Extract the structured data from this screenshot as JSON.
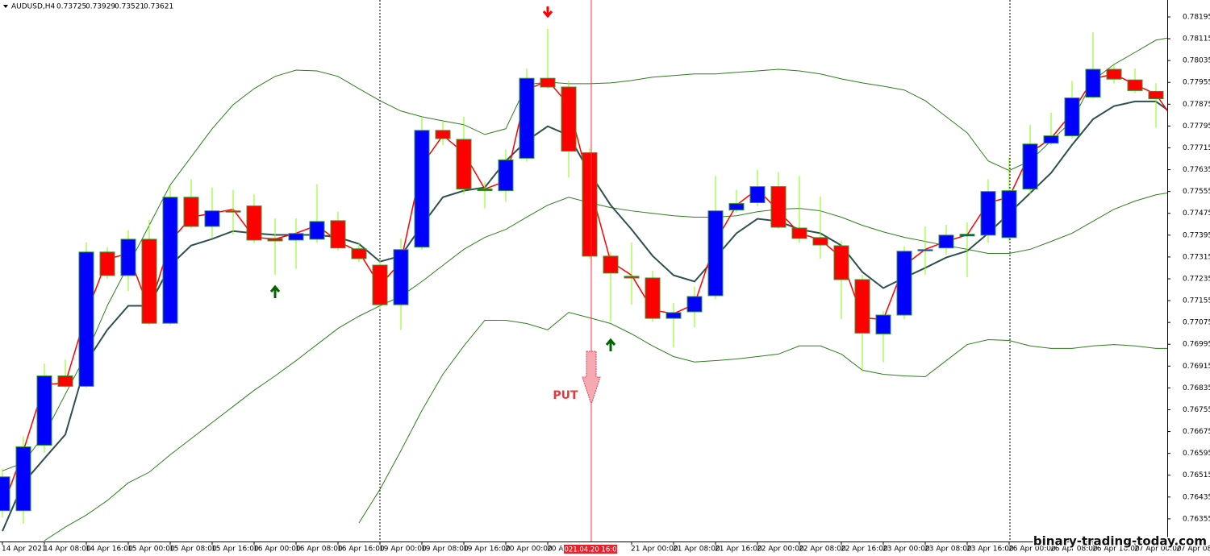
{
  "chart_data": {
    "type": "candlestick",
    "symbol": "AUDUSD,H4",
    "header_values": [
      0.73725,
      0.73929,
      0.73521,
      0.73621
    ],
    "categories": [
      "14 Apr 2021",
      null,
      "14 Apr 08:00",
      null,
      "14 Apr 16:00",
      null,
      "15 Apr 00:00",
      null,
      "15 Apr 08:00",
      null,
      "15 Apr 16:00",
      null,
      "16 Apr 00:00",
      null,
      "16 Apr 08:00",
      null,
      "16 Apr 16:00",
      null,
      "19 Apr 00:00",
      null,
      "19 Apr 08:00",
      null,
      "19 Apr 16:00",
      null,
      "20 Apr 00:00",
      null,
      "20 Apr 08:00",
      null,
      null,
      null,
      "21 Apr 00:00",
      null,
      "21 Apr 08:00",
      null,
      "21 Apr 16:00",
      null,
      "22 Apr 00:00",
      null,
      "22 Apr 08:00",
      null,
      "22 Apr 16:00",
      null,
      "23 Apr 00:00",
      null,
      "23 Apr 08:00",
      null,
      "23 Apr 16:00",
      null,
      "26 Apr 00:00",
      null,
      "26 Apr 08:00",
      null,
      "26 Apr 16:00",
      null,
      "27 Apr 00:00",
      null,
      "27 Apr 08:00"
    ],
    "open": [
      0.76385,
      0.76385,
      0.76625,
      0.76879,
      0.76841,
      0.77333,
      0.77247,
      0.7738,
      0.77072,
      0.77534,
      0.77427,
      0.77484,
      0.77502,
      0.77383,
      0.77377,
      0.7738,
      0.77448,
      0.77345,
      0.77285,
      0.7714,
      0.77351,
      0.77779,
      0.77746,
      0.77564,
      0.77558,
      0.77677,
      0.7797,
      0.77938,
      0.77697,
      0.77318,
      0.77244,
      0.77238,
      0.7709,
      0.77114,
      0.77173,
      0.77487,
      0.77514,
      0.77573,
      0.77421,
      0.77386,
      0.77356,
      0.77232,
      0.77033,
      0.77102,
      0.77339,
      0.77348,
      0.77392,
      0.77395,
      0.77386,
      0.77564,
      0.77732,
      0.77759,
      0.77901,
      0.78003,
      0.77964,
      0.77922,
      0.77892
    ],
    "high": [
      0.76539,
      0.76657,
      0.76924,
      0.76939,
      0.77369,
      0.77351,
      0.77413,
      0.77451,
      0.77576,
      0.776,
      0.7757,
      0.77561,
      0.77546,
      0.77457,
      0.77457,
      0.77582,
      0.77481,
      0.77368,
      0.77303,
      0.77383,
      0.77829,
      0.77814,
      0.77829,
      0.77591,
      0.77709,
      0.78006,
      0.78151,
      0.77961,
      0.77715,
      0.77333,
      0.77368,
      0.77265,
      0.77146,
      0.77206,
      0.77612,
      0.77561,
      0.77635,
      0.77626,
      0.77612,
      0.77537,
      0.77374,
      0.7725,
      0.77116,
      0.77353,
      0.77427,
      0.77433,
      0.77442,
      0.776,
      0.7768,
      0.778,
      0.77844,
      0.77961,
      0.78139,
      0.7802,
      0.78006,
      0.77952,
      0.77991
    ],
    "low": [
      0.76361,
      0.76337,
      0.76598,
      0.76835,
      0.76835,
      0.77235,
      0.77191,
      0.77066,
      0.77066,
      0.77421,
      0.77383,
      0.77398,
      0.77368,
      0.7725,
      0.77271,
      0.77368,
      0.77339,
      0.77297,
      0.77125,
      0.77048,
      0.77342,
      0.77725,
      0.77546,
      0.77493,
      0.77517,
      0.77665,
      0.77932,
      0.77606,
      0.77309,
      0.77078,
      0.7714,
      0.77078,
      0.76983,
      0.77057,
      0.77161,
      0.77478,
      0.77502,
      0.77418,
      0.77368,
      0.77309,
      0.77087,
      0.76894,
      0.7693,
      0.77087,
      0.7725,
      0.77324,
      0.77241,
      0.77368,
      0.77374,
      0.77546,
      0.77725,
      0.77749,
      0.77895,
      0.77952,
      0.77916,
      0.77789,
      0.77694
    ],
    "close": [
      0.76509,
      0.76619,
      0.76879,
      0.76841,
      0.77333,
      0.77247,
      0.7738,
      0.77072,
      0.77534,
      0.77427,
      0.77484,
      0.77481,
      0.77377,
      0.77374,
      0.77401,
      0.77445,
      0.77348,
      0.77309,
      0.7714,
      0.77342,
      0.77779,
      0.77749,
      0.77564,
      0.77558,
      0.77671,
      0.7797,
      0.77938,
      0.77703,
      0.77318,
      0.77256,
      0.77238,
      0.7709,
      0.77111,
      0.7717,
      0.77484,
      0.77511,
      0.77573,
      0.77424,
      0.77383,
      0.77359,
      0.77232,
      0.77036,
      0.77102,
      0.77336,
      0.77342,
      0.77395,
      0.77398,
      0.77555,
      0.77558,
      0.77729,
      0.77759,
      0.77898,
      0.78003,
      0.77967,
      0.77925,
      0.77895,
      0.77703
    ],
    "up_color": "#0000ff",
    "down_color": "#ff0000",
    "wick_color": "#7cfc00",
    "indicators": [
      {
        "color": "#2e7d1e",
        "values": [
          0.76531,
          0.76561,
          0.76664,
          0.76812,
          0.76959,
          0.77136,
          0.77284,
          0.77431,
          0.77579,
          0.77682,
          0.77785,
          0.77873,
          0.77932,
          0.77977,
          0.78,
          0.77997,
          0.77977,
          0.77932,
          0.77888,
          0.7785,
          0.77829,
          0.77814,
          0.778,
          0.77764,
          0.77785,
          0.77947,
          0.77956,
          0.7795,
          0.7795,
          0.77953,
          0.77962,
          0.77974,
          0.7798,
          0.77986,
          0.77986,
          0.77992,
          0.77997,
          0.78003,
          0.77997,
          0.77986,
          0.77968,
          0.77953,
          0.77941,
          0.77927,
          0.77888,
          0.77829,
          0.7777,
          0.77667,
          0.77632,
          0.77667,
          0.77741,
          0.77814,
          0.77962,
          0.78021,
          0.78065,
          0.7811,
          0.78124
        ]
      },
      {
        "color": "#2e7d1e",
        "values": [
          null,
          null,
          0.76275,
          0.76325,
          0.76369,
          0.76422,
          0.76487,
          0.76526,
          0.7659,
          0.76649,
          0.76708,
          0.76767,
          0.76826,
          0.76879,
          0.76935,
          0.76994,
          0.77053,
          0.77098,
          0.77136,
          0.77171,
          0.77225,
          0.77284,
          0.77343,
          0.77387,
          0.77416,
          0.77461,
          0.77505,
          0.77534,
          0.77514,
          0.77496,
          0.77484,
          0.77475,
          0.77466,
          0.77461,
          0.77461,
          0.77466,
          0.77481,
          0.7749,
          0.77493,
          0.77484,
          0.77461,
          0.77431,
          0.77407,
          0.77387,
          0.77372,
          0.77357,
          0.77343,
          0.77328,
          0.77328,
          0.77343,
          0.77372,
          0.77402,
          0.77446,
          0.7749,
          0.7752,
          0.77543,
          0.77555
        ]
      },
      {
        "color": "#2e7d1e",
        "values": [
          null,
          null,
          null,
          null,
          null,
          null,
          null,
          null,
          null,
          null,
          null,
          null,
          null,
          null,
          null,
          null,
          null,
          0.7634,
          0.76463,
          0.76605,
          0.76752,
          0.76885,
          0.76989,
          0.77083,
          0.77083,
          0.77071,
          0.77048,
          0.77112,
          0.77092,
          0.77071,
          0.77033,
          0.76989,
          0.7695,
          0.7693,
          0.76935,
          0.76941,
          0.7695,
          0.76959,
          0.76989,
          0.76989,
          0.76959,
          0.769,
          0.76885,
          0.76879,
          0.76876,
          0.76935,
          0.76994,
          0.77012,
          0.77009,
          0.76989,
          0.7698,
          0.7698,
          0.76989,
          0.76994,
          0.76989,
          0.7698,
          0.7698
        ]
      },
      {
        "color": "#2f4f4f",
        "values": [
          0.7631,
          0.76487,
          0.76576,
          0.76664,
          0.7693,
          0.77048,
          0.77136,
          0.77136,
          0.77284,
          0.77357,
          0.77381,
          0.7741,
          0.77402,
          0.77396,
          0.77396,
          0.77396,
          0.77387,
          0.77363,
          0.77298,
          0.77319,
          0.77431,
          0.77534,
          0.77558,
          0.7757,
          0.77667,
          0.77741,
          0.77794,
          0.77761,
          0.77623,
          0.77505,
          0.77416,
          0.77319,
          0.77248,
          0.77225,
          0.77313,
          0.77402,
          0.77455,
          0.77446,
          0.77416,
          0.77402,
          0.77357,
          0.7726,
          0.77201,
          0.77239,
          0.77275,
          0.77313,
          0.77337,
          0.77402,
          0.77475,
          0.77549,
          0.77623,
          0.77726,
          0.7782,
          0.77868,
          0.77885,
          0.77885,
          0.77829
        ]
      },
      {
        "color": "#ff0000",
        "values": [
          0.76393,
          0.76605,
          0.76847,
          0.76853,
          0.77107,
          0.77307,
          0.77328,
          0.77121,
          0.77372,
          0.77461,
          0.77475,
          0.7749,
          0.77387,
          0.77381,
          0.77402,
          0.77431,
          0.77372,
          0.77334,
          0.7721,
          0.77298,
          0.77652,
          0.77761,
          0.77697,
          0.77564,
          0.77593,
          0.77927,
          0.77962,
          0.77873,
          0.77579,
          0.77298,
          0.77248,
          0.77121,
          0.77107,
          0.77142,
          0.77372,
          0.77505,
          0.77564,
          0.77484,
          0.77402,
          0.77378,
          0.77313,
          0.77092,
          0.77086,
          0.77284,
          0.77343,
          0.77372,
          0.77396,
          0.77514,
          0.77534,
          0.77697,
          0.7775,
          0.77844,
          0.77968,
          0.77986,
          0.77947,
          0.77912,
          0.778
        ]
      }
    ],
    "ylim": [
      0.76272,
      0.78257
    ],
    "yticks": [
      0.78195,
      0.78115,
      0.78035,
      0.77955,
      0.77875,
      0.77795,
      0.77715,
      0.77635,
      0.77555,
      0.77475,
      0.77395,
      0.77315,
      0.77235,
      0.77155,
      0.77075,
      0.76995,
      0.76915,
      0.76835,
      0.76755,
      0.76675,
      0.76595,
      0.76515,
      0.76435,
      0.76355
    ],
    "cursor_label": "2021.04.20 16:00",
    "signal_label": "PUT",
    "watermark": "binary-trading-today.com"
  }
}
